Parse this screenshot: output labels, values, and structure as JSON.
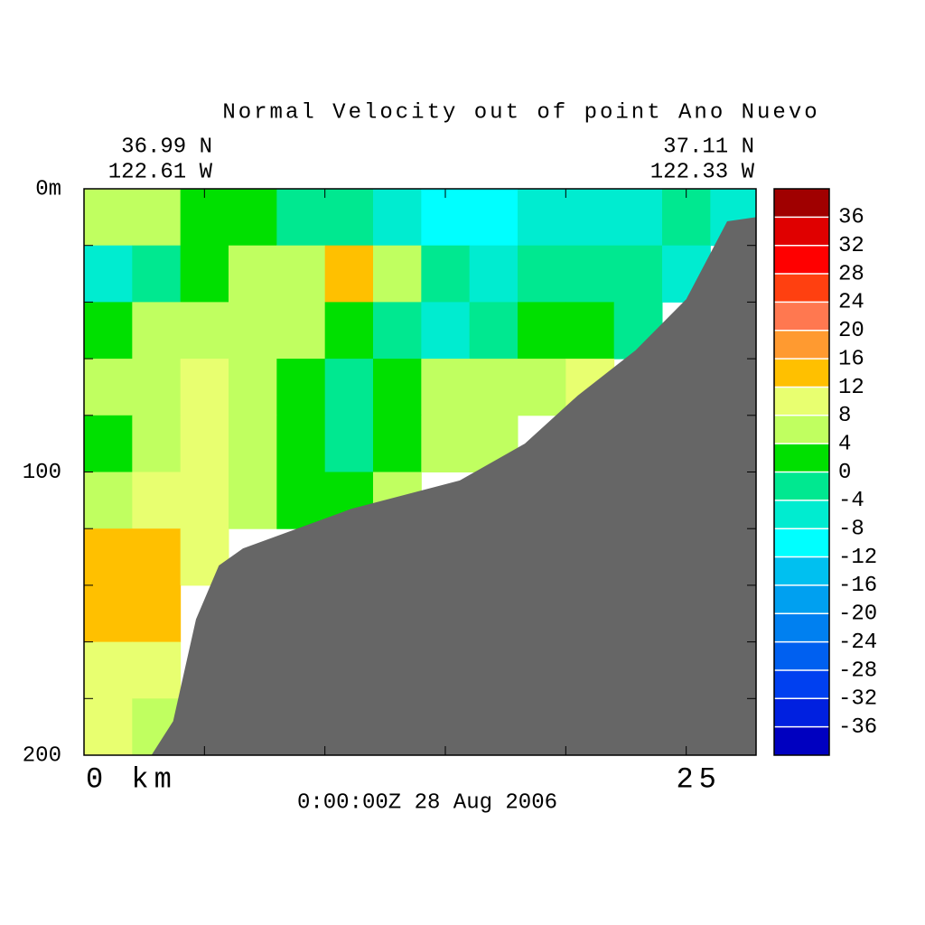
{
  "chart_data": {
    "type": "contour",
    "title": "Normal Velocity out of point Ano Nuevo",
    "left_lat": "36.99 N",
    "left_lon": "122.61 W",
    "right_lat": "37.11 N",
    "right_lon": "122.33 W",
    "time_label": "0:00:00Z  28 Aug 2006",
    "xlim": [
      0,
      27.9
    ],
    "ylim": [
      200,
      0
    ],
    "xticks": [
      {
        "value": 0,
        "label": "0 km"
      },
      25
    ],
    "xticks_minor": [
      5,
      10,
      15,
      20
    ],
    "yticks": [
      {
        "value": 0,
        "label": "0m"
      },
      100,
      200
    ],
    "yticks_minor": [
      20,
      40,
      60,
      80,
      120,
      140,
      160,
      180
    ],
    "x": [
      1,
      3,
      5,
      7,
      9,
      11,
      13,
      15,
      17,
      19,
      21,
      23,
      25,
      27
    ],
    "depth": [
      10,
      30,
      50,
      70,
      90,
      110,
      130,
      150,
      170,
      190
    ],
    "values": [
      [
        6,
        6,
        2,
        2,
        -2,
        -2,
        -6,
        -10,
        -10,
        -6,
        -6,
        -6,
        -2,
        -6
      ],
      [
        -6,
        -2,
        2,
        6,
        6,
        14,
        6,
        -2,
        -6,
        -2,
        -2,
        -2,
        -6,
        null
      ],
      [
        2,
        6,
        6,
        6,
        6,
        2,
        -2,
        -6,
        -2,
        2,
        2,
        -2,
        null,
        null
      ],
      [
        6,
        6,
        10,
        6,
        2,
        -2,
        2,
        6,
        6,
        6,
        10,
        null,
        null,
        null
      ],
      [
        2,
        6,
        10,
        6,
        2,
        -2,
        2,
        6,
        6,
        null,
        null,
        null,
        null,
        null
      ],
      [
        6,
        10,
        10,
        6,
        2,
        2,
        6,
        null,
        null,
        null,
        null,
        null,
        null,
        null
      ],
      [
        14,
        14,
        10,
        null,
        null,
        null,
        null,
        null,
        null,
        null,
        null,
        null,
        null,
        null
      ],
      [
        14,
        12,
        null,
        null,
        null,
        null,
        null,
        null,
        null,
        null,
        null,
        null,
        null,
        null
      ],
      [
        10,
        10,
        null,
        null,
        null,
        null,
        null,
        null,
        null,
        null,
        null,
        null,
        null,
        null
      ],
      [
        10,
        6,
        null,
        null,
        null,
        null,
        null,
        null,
        null,
        null,
        null,
        null,
        null,
        null
      ]
    ],
    "seafloor": {
      "color": "#666666",
      "x": [
        2.8,
        3.7,
        4.65,
        5.6,
        6.6,
        11.1,
        15.6,
        18.3,
        20.5,
        22.9,
        25,
        26.7,
        27.9
      ],
      "values": [
        200,
        188,
        152,
        133,
        127,
        113,
        103,
        90,
        73,
        57,
        39,
        11.5,
        10
      ]
    },
    "colorbar": {
      "lim": [
        -40,
        40
      ],
      "ticks": [
        -36,
        -32,
        -28,
        -24,
        -20,
        -16,
        -12,
        -8,
        -4,
        0,
        4,
        8,
        12,
        16,
        20,
        24,
        28,
        32,
        36
      ],
      "colors": [
        "#0000c0",
        "#0020e0",
        "#0040f0",
        "#0060f0",
        "#0080f0",
        "#00a0f0",
        "#00c0f0",
        "#00ffff",
        "#00ecd0",
        "#00e890",
        "#00e000",
        "#c0ff60",
        "#e8ff70",
        "#ffc000",
        "#ff9a30",
        "#ff7850",
        "#ff4010",
        "#ff0000",
        "#e00000",
        "#a00000"
      ]
    }
  }
}
